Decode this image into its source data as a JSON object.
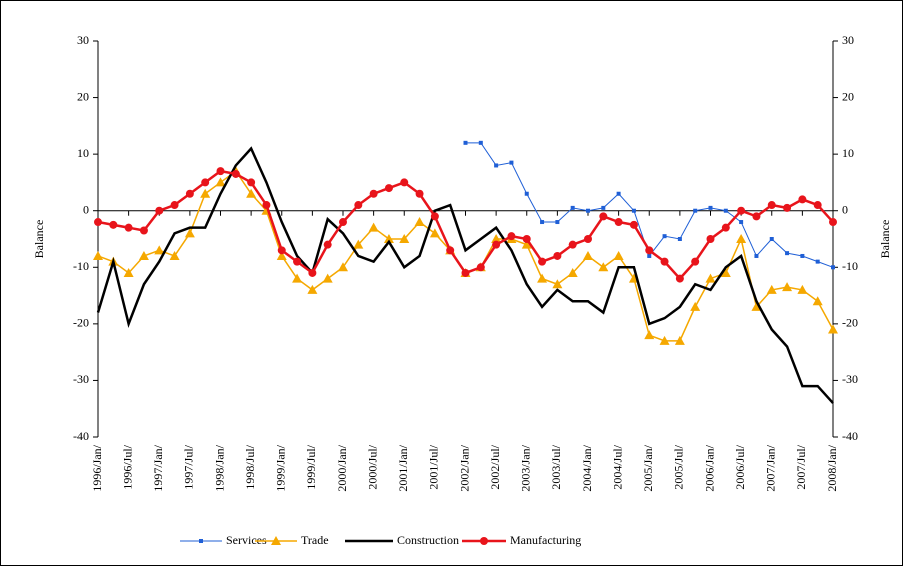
{
  "chart_data": {
    "type": "line",
    "categories": [
      "1996/Jan/",
      null,
      "1996/Jul/",
      null,
      "1997/Jan/",
      null,
      "1997/Jul/",
      null,
      "1998/Jan/",
      null,
      "1998/Jul/",
      null,
      "1999/Jan/",
      null,
      "1999/Jul/",
      null,
      "2000/Jan/",
      null,
      "2000/Jul/",
      null,
      "2001/Jan/",
      null,
      "2001/Jul/",
      null,
      "2002/Jan/",
      null,
      "2002/Jul/",
      null,
      "2003/Jan/",
      null,
      "2003/Jul/",
      null,
      "2004/Jan/",
      null,
      "2004/Jul/",
      null,
      "2005/Jan/",
      null,
      "2005/Jul/",
      null,
      "2006/Jan/",
      null,
      "2006/Jul/",
      null,
      "2007/Jan/",
      null,
      "2007/Jul/",
      null,
      "2008/Jan/"
    ],
    "y_label": "Balance",
    "y2_label": "Balance",
    "ylim": [
      -40,
      30
    ],
    "yticks": [
      -40,
      -30,
      -20,
      -10,
      0,
      10,
      20,
      30
    ],
    "y2lim": [
      -40,
      30
    ],
    "y2ticks": [
      -40,
      -30,
      -20,
      -10,
      0,
      10,
      20,
      30
    ],
    "grid": false,
    "series": [
      {
        "name": "Services",
        "color": "#1f5fd6",
        "marker": "square",
        "width": 1,
        "values": [
          null,
          null,
          null,
          null,
          null,
          null,
          null,
          null,
          null,
          null,
          null,
          null,
          null,
          null,
          null,
          null,
          null,
          null,
          null,
          null,
          null,
          null,
          null,
          null,
          12,
          12,
          8,
          8.5,
          3,
          -2,
          -2,
          0.5,
          0,
          0.5,
          3,
          0,
          -8,
          -4.5,
          -5,
          0,
          0.5,
          0,
          -2,
          -8,
          -5,
          -7.5,
          -8,
          -9,
          -10
        ]
      },
      {
        "name": "Trade",
        "color": "#f5a800",
        "marker": "triangle",
        "width": 1.5,
        "values": [
          -8,
          -9,
          -11,
          -8,
          -7,
          -8,
          -4,
          3,
          5,
          7,
          3,
          0,
          -8,
          -12,
          -14,
          -12,
          -10,
          -6,
          -3,
          -5,
          -5,
          -2,
          -4,
          -7,
          -11,
          -10,
          -5,
          -5,
          -6,
          -12,
          -13,
          -11,
          -8,
          -10,
          -8,
          -12,
          -22,
          -23,
          -23,
          -17,
          -12,
          -11,
          -5,
          -17,
          -14,
          -13.5,
          -14,
          -16,
          -21
        ]
      },
      {
        "name": "Construction",
        "color": "#000000",
        "marker": "none",
        "width": 2.5,
        "values": [
          -18,
          -9,
          -20,
          -13,
          -9,
          -4,
          -3,
          -3,
          3,
          8,
          11,
          5,
          -2,
          -8,
          -11,
          -1.5,
          -4,
          -8,
          -9,
          -5.5,
          -10,
          -8,
          0,
          1,
          -7,
          -5,
          -3,
          -7,
          -13,
          -17,
          -14,
          -16,
          -16,
          -18,
          -10,
          -10,
          -20,
          -19,
          -17,
          -13,
          -14,
          -10,
          -8,
          -16,
          -21,
          -24,
          -31,
          -31,
          -34
        ]
      },
      {
        "name": "Manufacturing",
        "color": "#e8141b",
        "marker": "circle",
        "width": 2.5,
        "values": [
          -2,
          -2.5,
          -3,
          -3.5,
          0,
          1,
          3,
          5,
          7,
          6.5,
          5,
          1,
          -7,
          -9,
          -11,
          -6,
          -2,
          1,
          3,
          4,
          5,
          3,
          -1,
          -7,
          -11,
          -10,
          -6,
          -4.5,
          -5,
          -9,
          -8,
          -6,
          -5,
          -1,
          -2,
          -2.5,
          -7,
          -9,
          -12,
          -9,
          -5,
          -3,
          0,
          -1,
          1,
          0.5,
          2,
          1,
          -2
        ]
      }
    ]
  }
}
